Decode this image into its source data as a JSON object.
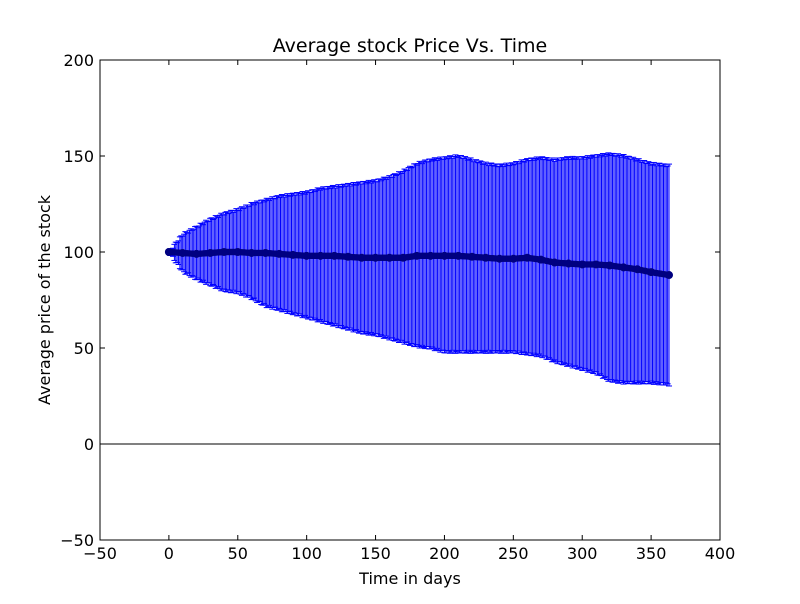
{
  "chart_data": {
    "type": "scatter",
    "title": "Average stock Price Vs. Time",
    "xlabel": "Time in days",
    "ylabel": "Average price of the stock",
    "xlim": [
      -50,
      400
    ],
    "ylim": [
      -50,
      200
    ],
    "xticks": [
      "−50",
      "0",
      "50",
      "100",
      "150",
      "200",
      "250",
      "300",
      "350",
      "400"
    ],
    "yticks": [
      "−50",
      "0",
      "50",
      "100",
      "150",
      "200"
    ],
    "xtick_values": [
      -50,
      0,
      50,
      100,
      150,
      200,
      250,
      300,
      350,
      400
    ],
    "ytick_values": [
      -50,
      0,
      50,
      100,
      150,
      200
    ],
    "reference_line_y": 0,
    "grid": false,
    "legend": "none",
    "error_bars": true,
    "colors": {
      "errorbar": "#0000ff",
      "marker": "#000080",
      "axes": "#000000"
    },
    "x": [
      0,
      10,
      20,
      30,
      40,
      50,
      60,
      70,
      80,
      90,
      100,
      110,
      120,
      130,
      140,
      150,
      160,
      170,
      180,
      190,
      200,
      210,
      220,
      230,
      240,
      250,
      260,
      270,
      280,
      290,
      300,
      310,
      320,
      330,
      340,
      350,
      363
    ],
    "y": [
      100,
      99.5,
      99,
      99.5,
      100,
      100,
      99.5,
      99.5,
      99,
      98.5,
      98,
      98,
      98,
      97.5,
      97,
      97,
      97,
      97,
      98,
      98,
      98,
      98,
      97.5,
      97,
      96.5,
      96.5,
      97,
      96,
      94.5,
      94,
      93.5,
      93.5,
      93,
      92,
      91,
      89.5,
      88
    ],
    "y_upper": [
      100,
      109,
      113,
      117,
      120,
      122,
      125,
      127,
      129,
      130,
      131,
      133,
      134,
      135,
      136,
      137,
      139,
      142,
      146,
      148,
      149,
      150,
      148,
      146,
      145,
      146,
      148,
      149,
      148,
      149,
      149,
      150,
      151,
      150,
      148,
      146,
      145
    ],
    "y_lower": [
      100,
      90,
      86,
      83,
      80,
      79,
      76,
      72,
      70,
      68,
      66,
      64,
      62,
      60,
      58,
      57,
      55,
      53,
      51,
      50,
      48,
      48,
      48,
      48,
      48,
      48,
      47,
      46,
      43,
      41,
      39,
      37,
      33,
      32,
      32,
      32,
      31
    ]
  }
}
